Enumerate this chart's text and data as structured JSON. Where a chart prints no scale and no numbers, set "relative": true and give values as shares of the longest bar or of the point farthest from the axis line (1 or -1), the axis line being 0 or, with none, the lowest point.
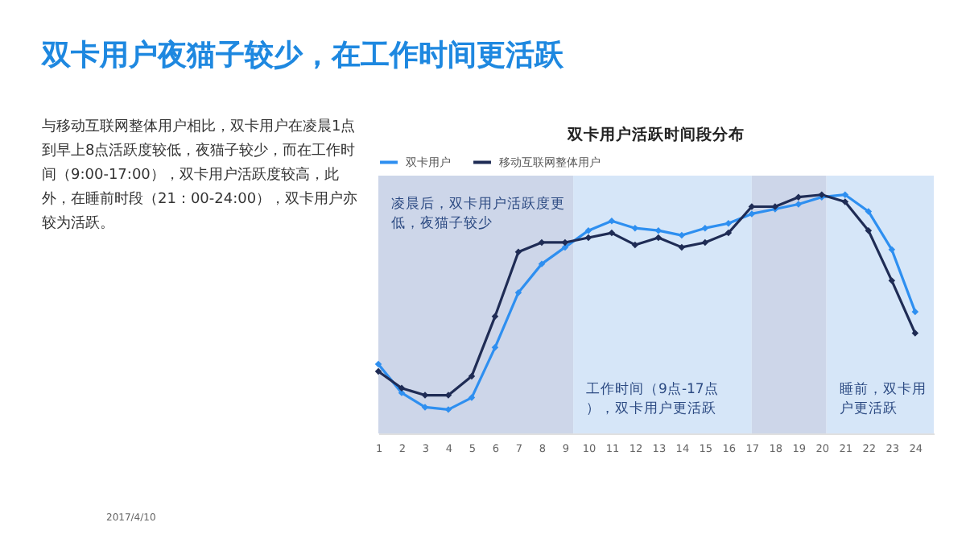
{
  "chart_data": {
    "type": "line",
    "title": "双卡用户夜猫子较少，在工作时间更活跃",
    "subtitle": "双卡用户活跃时间段分布",
    "annotations": [
      "与移动互联网整体用户相比，双卡用户在凌晨1点到早上8点活跃度较低，夜猫子较少，而在工作时间（9:00-17:00），双卡用户活跃度较高，此外，在睡前时段（21：00-24:00），双卡用户亦较为活跃。",
      "2017/4/10"
    ],
    "x": [
      1,
      2,
      3,
      4,
      5,
      6,
      7,
      8,
      9,
      10,
      11,
      12,
      13,
      14,
      15,
      16,
      17,
      18,
      19,
      20,
      21,
      22,
      23,
      24
    ],
    "xlim": [
      1,
      24.8
    ],
    "xticks": [
      1,
      2,
      3,
      4,
      5,
      6,
      7,
      8,
      9,
      10,
      11,
      12,
      13,
      14,
      15,
      16,
      17,
      18,
      19,
      20,
      21,
      22,
      23,
      24
    ],
    "relative": true,
    "grid": false,
    "legend": "top",
    "marker": "diamond",
    "line_style": "solid",
    "series": [
      {
        "name": "双卡用户",
        "color": "#2e8ff0",
        "values": [
          0.29,
          0.17,
          0.11,
          0.1,
          0.15,
          0.36,
          0.59,
          0.71,
          0.78,
          0.85,
          0.89,
          0.86,
          0.85,
          0.83,
          0.86,
          0.88,
          0.92,
          0.94,
          0.96,
          0.99,
          1,
          0.93,
          0.77,
          0.51
        ]
      },
      {
        "name": "移动互联网整体用户",
        "color": "#1f2c55",
        "values": [
          0.26,
          0.19,
          0.16,
          0.16,
          0.24,
          0.49,
          0.76,
          0.8,
          0.8,
          0.82,
          0.84,
          0.79,
          0.82,
          0.78,
          0.8,
          0.84,
          0.95,
          0.95,
          0.99,
          1,
          0.97,
          0.85,
          0.64,
          0.42
        ]
      }
    ],
    "bands": [
      {
        "axis": "x",
        "from": 1,
        "to": 9.35,
        "color": "#cdd6e9",
        "label": "凌晨后，双卡用户活跃度更低，夜猫子较少"
      },
      {
        "axis": "x",
        "from": 9.35,
        "to": 17,
        "color": "#d6e6f8",
        "label": "工作时间（9点-17点），双卡用户更活跃"
      },
      {
        "axis": "x",
        "from": 17,
        "to": 20.2,
        "color": "#cdd6e9"
      },
      {
        "axis": "x",
        "from": 20.2,
        "to": 24.8,
        "color": "#d6e6f8",
        "label": "睡前，双卡用户更活跃"
      }
    ]
  }
}
